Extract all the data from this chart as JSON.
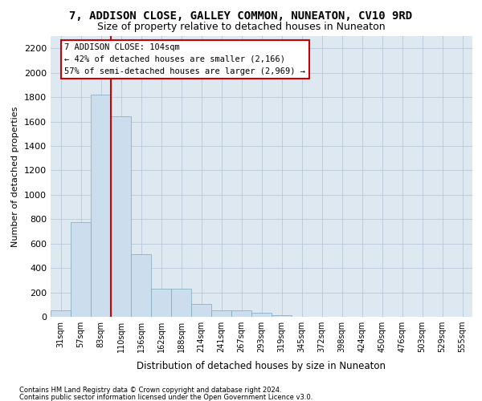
{
  "title1": "7, ADDISON CLOSE, GALLEY COMMON, NUNEATON, CV10 9RD",
  "title2": "Size of property relative to detached houses in Nuneaton",
  "xlabel": "Distribution of detached houses by size in Nuneaton",
  "ylabel": "Number of detached properties",
  "categories": [
    "31sqm",
    "57sqm",
    "83sqm",
    "110sqm",
    "136sqm",
    "162sqm",
    "188sqm",
    "214sqm",
    "241sqm",
    "267sqm",
    "293sqm",
    "319sqm",
    "345sqm",
    "372sqm",
    "398sqm",
    "424sqm",
    "450sqm",
    "476sqm",
    "503sqm",
    "529sqm",
    "555sqm"
  ],
  "values": [
    50,
    775,
    1820,
    1640,
    510,
    230,
    230,
    105,
    50,
    50,
    30,
    15,
    0,
    0,
    0,
    0,
    0,
    0,
    0,
    0,
    0
  ],
  "bar_color": "#ccdded",
  "bar_edge_color": "#7aaabb",
  "vline_color": "#cc0000",
  "vline_x": 2.5,
  "annotation_line1": "7 ADDISON CLOSE: 104sqm",
  "annotation_line2": "← 42% of detached houses are smaller (2,166)",
  "annotation_line3": "57% of semi-detached houses are larger (2,969) →",
  "ylim": [
    0,
    2300
  ],
  "yticks": [
    0,
    200,
    400,
    600,
    800,
    1000,
    1200,
    1400,
    1600,
    1800,
    2000,
    2200
  ],
  "footer1": "Contains HM Land Registry data © Crown copyright and database right 2024.",
  "footer2": "Contains public sector information licensed under the Open Government Licence v3.0.",
  "bg_color": "#dde8f0",
  "grid_color": "#b8c8d8",
  "title1_fontsize": 10,
  "title2_fontsize": 9,
  "axis_fontsize": 7,
  "ylabel_fontsize": 8,
  "xlabel_fontsize": 8.5
}
